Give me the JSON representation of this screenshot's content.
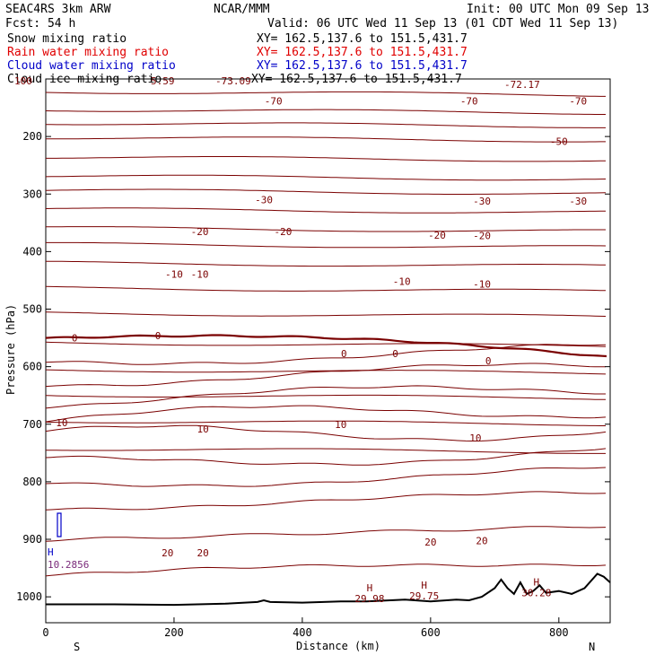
{
  "header": {
    "line1_left": "SEAC4RS  3km ARW",
    "line1_center": "NCAR/MMM",
    "line1_right": "Init: 00 UTC Mon 09 Sep 13",
    "line2_left": "Fcst:   54 h",
    "line2_right": "Valid: 06 UTC Wed 11 Sep 13 (01 CDT Wed 11 Sep 13)"
  },
  "fields": [
    {
      "label": "Snow mixing ratio",
      "xy": "XY= 162.5,137.6 to 151.5,431.7",
      "color": "#000000"
    },
    {
      "label": "Rain water mixing ratio",
      "xy": "XY= 162.5,137.6 to 151.5,431.7",
      "color": "#e00000"
    },
    {
      "label": "Cloud water mixing ratio",
      "xy": "XY= 162.5,137.6 to 151.5,431.7",
      "color": "#0000c8"
    },
    {
      "label": "Cloud ice mixing ratio",
      "xy": "XY= 162.5,137.6 to 151.5,431.7",
      "color": "#000000"
    }
  ],
  "chart_data": {
    "type": "line",
    "xlabel": "Distance (km)",
    "ylabel": "Pressure (hPa)",
    "xlim": [
      0,
      880
    ],
    "ylim": [
      1045,
      100
    ],
    "x_ticks": [
      0,
      200,
      400,
      600,
      800
    ],
    "y_ticks": [
      200,
      300,
      400,
      500,
      600,
      700,
      800,
      900,
      1000
    ],
    "x_end_labels": {
      "left": "S",
      "right": "N"
    },
    "top_clip_labels": [
      "100",
      "5.59",
      "-73.09",
      "-72.17"
    ],
    "terrain_pressure": [
      [
        0,
        1013
      ],
      [
        100,
        1013
      ],
      [
        200,
        1014
      ],
      [
        280,
        1012
      ],
      [
        330,
        1009
      ],
      [
        340,
        1006
      ],
      [
        350,
        1009
      ],
      [
        400,
        1010
      ],
      [
        460,
        1008
      ],
      [
        500,
        1008
      ],
      [
        560,
        1005
      ],
      [
        600,
        1008
      ],
      [
        640,
        1005
      ],
      [
        660,
        1006
      ],
      [
        680,
        1000
      ],
      [
        700,
        985
      ],
      [
        710,
        970
      ],
      [
        720,
        985
      ],
      [
        730,
        995
      ],
      [
        740,
        975
      ],
      [
        750,
        995
      ],
      [
        760,
        990
      ],
      [
        770,
        980
      ],
      [
        780,
        993
      ],
      [
        800,
        990
      ],
      [
        820,
        995
      ],
      [
        840,
        985
      ],
      [
        860,
        960
      ],
      [
        870,
        965
      ],
      [
        880,
        975
      ]
    ],
    "contour_labels": [
      {
        "x": 355,
        "p": 138,
        "text": "-70"
      },
      {
        "x": 660,
        "p": 138,
        "text": "-70"
      },
      {
        "x": 830,
        "p": 138,
        "text": "-70"
      },
      {
        "x": 800,
        "p": 208,
        "text": "-50"
      },
      {
        "x": 340,
        "p": 310,
        "text": "-30"
      },
      {
        "x": 680,
        "p": 312,
        "text": "-30"
      },
      {
        "x": 830,
        "p": 312,
        "text": "-30"
      },
      {
        "x": 240,
        "p": 365,
        "text": "-20"
      },
      {
        "x": 370,
        "p": 365,
        "text": "-20"
      },
      {
        "x": 610,
        "p": 371,
        "text": "-20"
      },
      {
        "x": 680,
        "p": 372,
        "text": "-20"
      },
      {
        "x": 200,
        "p": 439,
        "text": "-10"
      },
      {
        "x": 240,
        "p": 439,
        "text": "-10"
      },
      {
        "x": 555,
        "p": 452,
        "text": "-10"
      },
      {
        "x": 680,
        "p": 456,
        "text": "-10"
      },
      {
        "x": 45,
        "p": 550,
        "text": "0"
      },
      {
        "x": 175,
        "p": 546,
        "text": "0"
      },
      {
        "x": 465,
        "p": 577,
        "text": "0"
      },
      {
        "x": 545,
        "p": 577,
        "text": "0"
      },
      {
        "x": 690,
        "p": 590,
        "text": "0"
      },
      {
        "x": 25,
        "p": 697,
        "text": "10"
      },
      {
        "x": 245,
        "p": 708,
        "text": "10"
      },
      {
        "x": 460,
        "p": 700,
        "text": "10"
      },
      {
        "x": 670,
        "p": 724,
        "text": "10"
      },
      {
        "x": 190,
        "p": 923,
        "text": "20"
      },
      {
        "x": 245,
        "p": 923,
        "text": "20"
      },
      {
        "x": 600,
        "p": 905,
        "text": "20"
      },
      {
        "x": 680,
        "p": 902,
        "text": "20"
      }
    ],
    "highs": [
      {
        "x": 505,
        "p": 1003,
        "value": "29.98"
      },
      {
        "x": 590,
        "p": 998,
        "value": "29.75"
      },
      {
        "x": 765,
        "p": 993,
        "value": "30.28"
      }
    ],
    "left_marks": [
      {
        "label": "H",
        "p": 922
      },
      {
        "label": "10.2856",
        "p": 944
      }
    ]
  }
}
